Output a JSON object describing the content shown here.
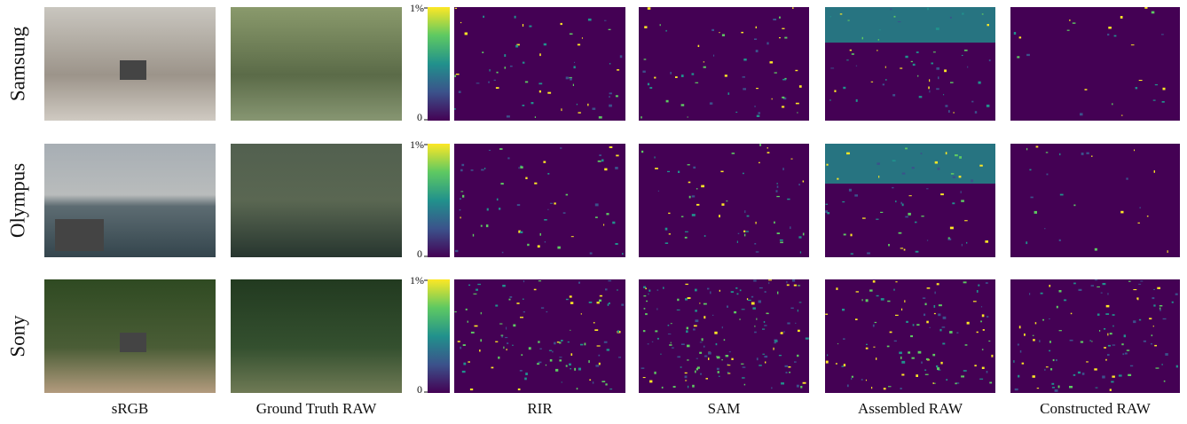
{
  "figure": {
    "rows": [
      "Samsung",
      "Olympus",
      "Sony"
    ],
    "columns": [
      "sRGB",
      "Ground Truth RAW",
      "RIR",
      "SAM",
      "Assembled RAW",
      "Constructed RAW"
    ],
    "colorbar": {
      "max_label": "1%",
      "min_label": "0"
    }
  }
}
